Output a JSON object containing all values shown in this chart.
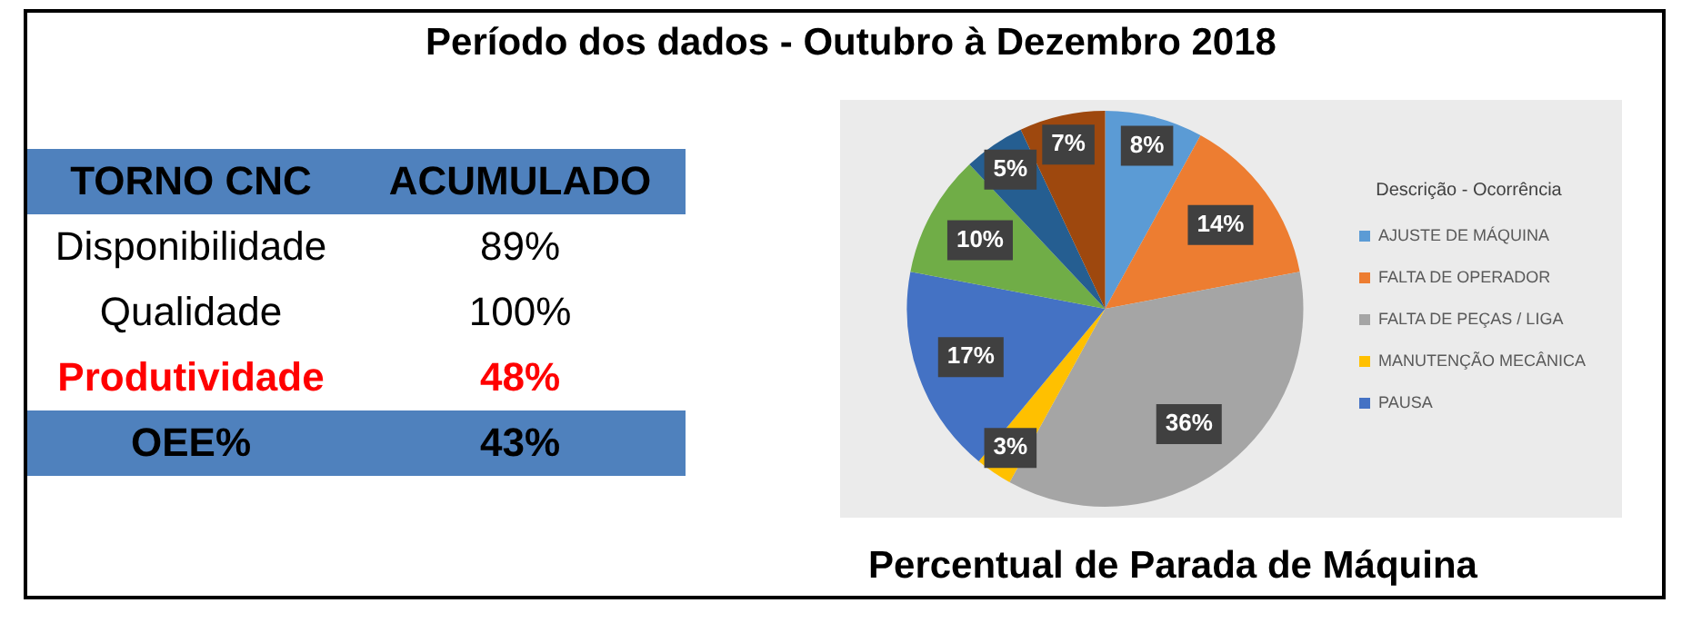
{
  "chart_data": [
    {
      "type": "other",
      "title": "Período dos dados - Outubro à Dezembro 2018",
      "annotations": [
        "TORNO CNC",
        "ACUMULADO",
        "Disponibilidade",
        "89%",
        "Qualidade",
        "100%",
        "Produtividade",
        "48%",
        "OEE%",
        "43%"
      ]
    },
    {
      "type": "pie",
      "title": "Percentual de Parada de Máquina",
      "legend_title": "Descrição - Ocorrência",
      "legend": "right",
      "categories": [
        "AJUSTE DE MÁQUINA",
        "FALTA DE OPERADOR",
        "FALTA DE PEÇAS / LIGA",
        "MANUTENÇÃO MECÂNICA",
        "PAUSA",
        null,
        null,
        null
      ],
      "values": [
        8,
        14,
        36,
        3,
        17,
        10,
        5,
        7
      ],
      "value_labels": [
        "8%",
        "14%",
        "36%",
        "3%",
        "17%",
        "10%",
        "5%",
        "7%"
      ],
      "colors": [
        "#5b9bd5",
        "#ed7d31",
        "#a5a5a5",
        "#ffc000",
        "#4472c4",
        "#70ad47",
        "#255e91",
        "#9e480e"
      ]
    }
  ]
}
